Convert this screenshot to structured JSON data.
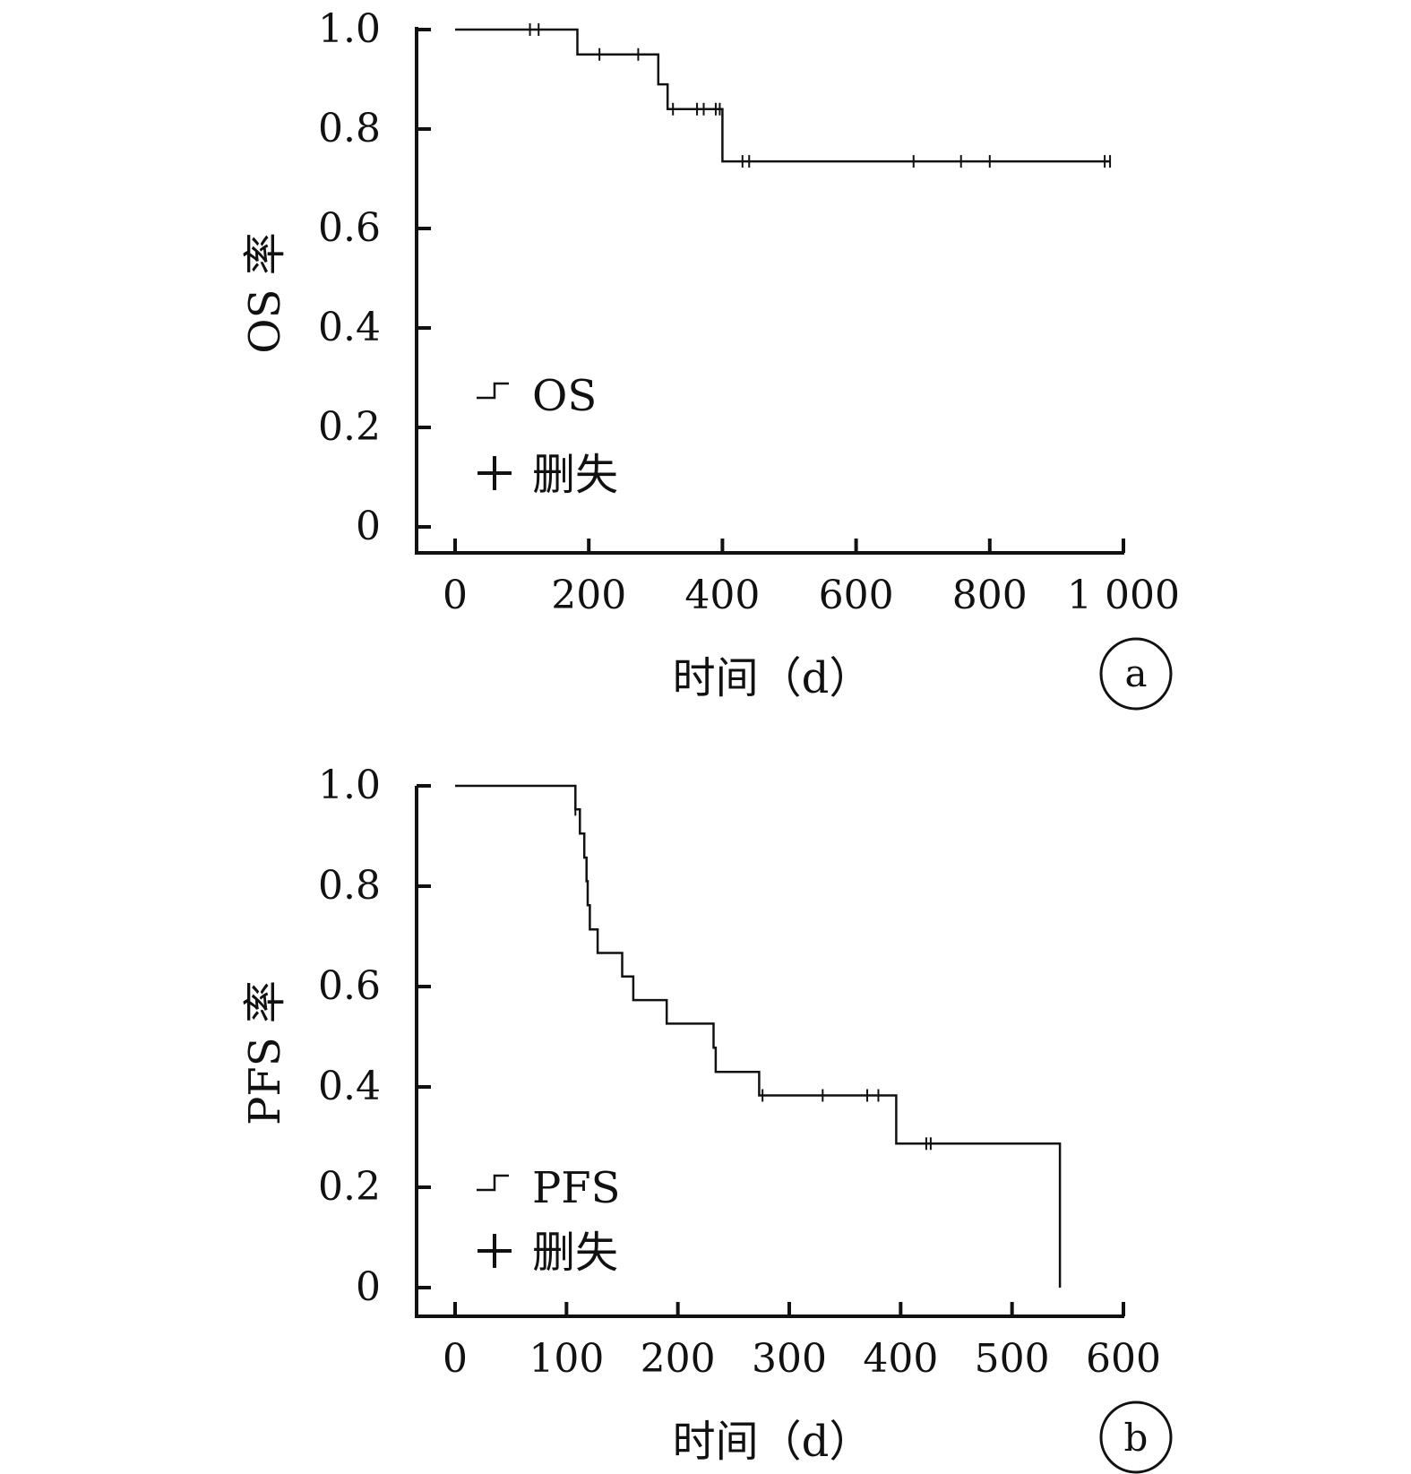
{
  "chart_data": [
    {
      "type": "line",
      "panel_label": "a",
      "xlabel": "时间（d）",
      "ylabel": "OS 率",
      "xlim": [
        0,
        1000
      ],
      "ylim": [
        0,
        1.0
      ],
      "x_ticks": [
        0,
        200,
        400,
        600,
        800,
        1000
      ],
      "x_tick_labels": [
        "0",
        "200",
        "400",
        "600",
        "800",
        "1 000"
      ],
      "y_ticks": [
        0,
        0.2,
        0.4,
        0.6,
        0.8,
        1.0
      ],
      "y_tick_labels": [
        "0",
        "0.2",
        "0.4",
        "0.6",
        "0.8",
        "1.0"
      ],
      "legend": {
        "position": "bottom-left",
        "entries": [
          {
            "symbol": "step",
            "label": "OS"
          },
          {
            "symbol": "plus",
            "label": "删失"
          }
        ]
      },
      "series": [
        {
          "name": "OS",
          "step_points": [
            [
              0,
              1.0
            ],
            [
              183,
              1.0
            ],
            [
              183,
              0.95
            ],
            [
              304,
              0.95
            ],
            [
              304,
              0.89
            ],
            [
              318,
              0.89
            ],
            [
              318,
              0.84
            ],
            [
              400,
              0.84
            ],
            [
              400,
              0.735
            ],
            [
              980,
              0.735
            ]
          ],
          "censored": [
            [
              112,
              1.0
            ],
            [
              125,
              1.0
            ],
            [
              216,
              0.95
            ],
            [
              274,
              0.95
            ],
            [
              326,
              0.84
            ],
            [
              362,
              0.84
            ],
            [
              372,
              0.84
            ],
            [
              390,
              0.84
            ],
            [
              396,
              0.84
            ],
            [
              430,
              0.735
            ],
            [
              440,
              0.735
            ],
            [
              686,
              0.735
            ],
            [
              757,
              0.735
            ],
            [
              800,
              0.735
            ],
            [
              972,
              0.735
            ],
            [
              980,
              0.735
            ]
          ]
        }
      ]
    },
    {
      "type": "line",
      "panel_label": "b",
      "xlabel": "时间（d）",
      "ylabel": "PFS 率",
      "xlim": [
        0,
        600
      ],
      "ylim": [
        0,
        1.0
      ],
      "x_ticks": [
        0,
        100,
        200,
        300,
        400,
        500,
        600
      ],
      "x_tick_labels": [
        "0",
        "100",
        "200",
        "300",
        "400",
        "500",
        "600"
      ],
      "y_ticks": [
        0,
        0.2,
        0.4,
        0.6,
        0.8,
        1.0
      ],
      "y_tick_labels": [
        "0",
        "0.2",
        "0.4",
        "0.6",
        "0.8",
        "1.0"
      ],
      "legend": {
        "position": "bottom-left",
        "entries": [
          {
            "symbol": "step",
            "label": "PFS"
          },
          {
            "symbol": "plus",
            "label": "删失"
          }
        ]
      },
      "series": [
        {
          "name": "PFS",
          "step_points": [
            [
              0,
              1.0
            ],
            [
              108,
              1.0
            ],
            [
              108,
              0.953
            ],
            [
              112,
              0.953
            ],
            [
              112,
              0.905
            ],
            [
              116,
              0.905
            ],
            [
              116,
              0.857
            ],
            [
              118,
              0.857
            ],
            [
              118,
              0.81
            ],
            [
              119,
              0.81
            ],
            [
              119,
              0.762
            ],
            [
              121,
              0.762
            ],
            [
              121,
              0.714
            ],
            [
              128,
              0.714
            ],
            [
              128,
              0.667
            ],
            [
              150,
              0.667
            ],
            [
              150,
              0.62
            ],
            [
              160,
              0.62
            ],
            [
              160,
              0.573
            ],
            [
              190,
              0.573
            ],
            [
              190,
              0.526
            ],
            [
              232,
              0.526
            ],
            [
              232,
              0.478
            ],
            [
              234,
              0.478
            ],
            [
              234,
              0.43
            ],
            [
              273,
              0.43
            ],
            [
              273,
              0.383
            ],
            [
              396,
              0.383
            ],
            [
              396,
              0.287
            ],
            [
              543,
              0.287
            ],
            [
              543,
              0.0
            ]
          ],
          "censored": [
            [
              108,
              0.953
            ],
            [
              276,
              0.383
            ],
            [
              330,
              0.383
            ],
            [
              370,
              0.383
            ],
            [
              380,
              0.383
            ],
            [
              423,
              0.287
            ],
            [
              427,
              0.287
            ]
          ]
        }
      ]
    }
  ]
}
